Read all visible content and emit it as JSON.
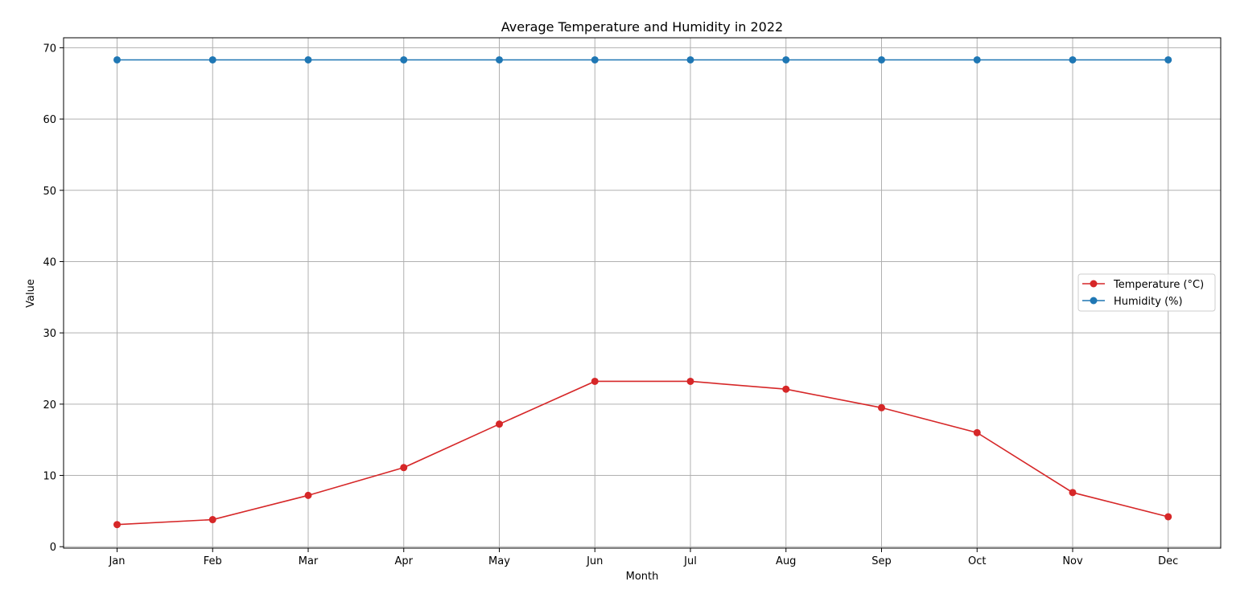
{
  "chart_data": {
    "type": "line",
    "title": "Average Temperature and Humidity in 2022",
    "xlabel": "Month",
    "ylabel": "Value",
    "categories": [
      "Jan",
      "Feb",
      "Mar",
      "Apr",
      "May",
      "Jun",
      "Jul",
      "Aug",
      "Sep",
      "Oct",
      "Nov",
      "Dec"
    ],
    "ylim": [
      -0.2,
      71.4
    ],
    "yticks": [
      0,
      10,
      20,
      30,
      40,
      50,
      60,
      70
    ],
    "grid": true,
    "legend_position": "center-right",
    "series": [
      {
        "name": "Temperature (°C)",
        "color": "#d62728",
        "values": [
          3.1,
          3.8,
          7.2,
          11.1,
          17.2,
          23.2,
          23.2,
          22.1,
          19.5,
          16.0,
          7.6,
          4.2
        ]
      },
      {
        "name": "Humidity (%)",
        "color": "#1f77b4",
        "values": [
          68.3,
          68.3,
          68.3,
          68.3,
          68.3,
          68.3,
          68.3,
          68.3,
          68.3,
          68.3,
          68.3,
          68.3
        ]
      }
    ]
  }
}
